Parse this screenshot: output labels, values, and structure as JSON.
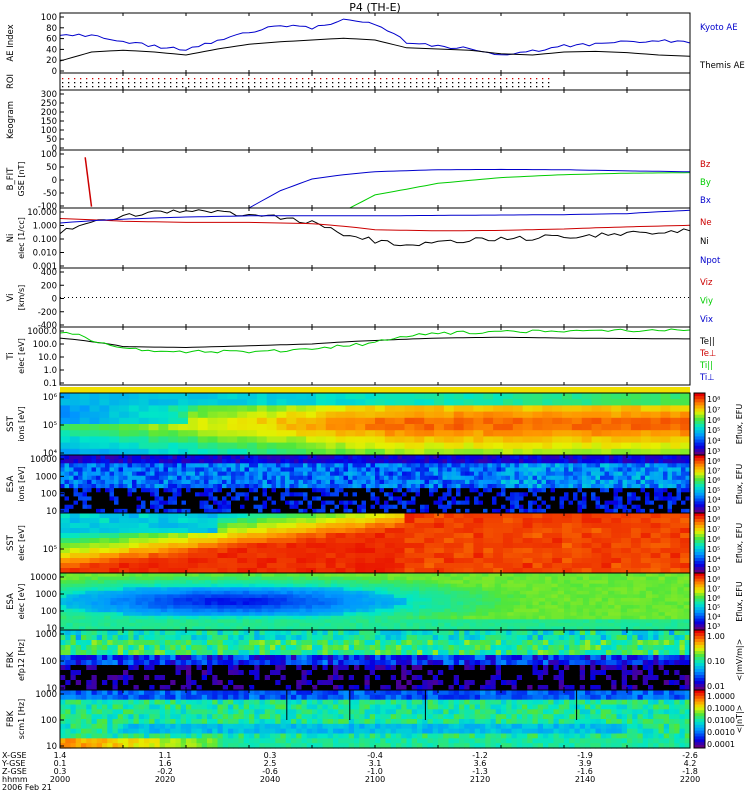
{
  "title": "P4 (TH-E)",
  "colors": {
    "kyoto": "#0000cc",
    "themis": "#000000",
    "bz": "#cc0000",
    "by": "#00cc00",
    "bx": "#0000cc",
    "ne": "#cc0000",
    "ni": "#000000",
    "npot": "#0000cc",
    "telll": "#000000",
    "tep": "#cc0000",
    "til": "#00cc00",
    "tip": "#0000cc"
  },
  "panels": [
    {
      "id": "ae",
      "ylabel": "AE Index",
      "units": "",
      "ticks": [
        "100",
        "80",
        "60",
        "40",
        "20",
        "0"
      ],
      "legend": [
        {
          "text": "Kyoto AE",
          "color": "#0000cc"
        },
        {
          "text": "Themis AE",
          "color": "#000000"
        }
      ]
    },
    {
      "id": "roi",
      "ylabel": "ROI",
      "units": "",
      "ticks": [],
      "legend": []
    },
    {
      "id": "keogram",
      "ylabel": "Keogram",
      "units": "",
      "ticks": [
        "300",
        "250",
        "200",
        "150",
        "100",
        "50",
        "0"
      ],
      "legend": []
    },
    {
      "id": "bfit",
      "ylabel": "B_FIT",
      "units": "GSE [nT]",
      "ticks": [
        "100",
        "50",
        "0",
        "-50",
        "-100"
      ],
      "legend": [
        {
          "text": "Bz",
          "color": "#cc0000"
        },
        {
          "text": "By",
          "color": "#00cc00"
        },
        {
          "text": "Bx",
          "color": "#0000cc"
        }
      ]
    },
    {
      "id": "ni",
      "ylabel": "Ni",
      "units": "elec [1/cc]",
      "ticks": [
        "10.000",
        "1.000",
        "0.100",
        "0.010",
        "0.001"
      ],
      "legend": [
        {
          "text": "Ne",
          "color": "#cc0000"
        },
        {
          "text": "Ni",
          "color": "#000000"
        },
        {
          "text": "Npot",
          "color": "#0000cc"
        }
      ]
    },
    {
      "id": "vi",
      "ylabel": "Vi",
      "units": "[km/s]",
      "ticks": [
        "400",
        "200",
        "0",
        "-200",
        "-400"
      ],
      "legend": [
        {
          "text": "Viz",
          "color": "#cc0000"
        },
        {
          "text": "Viy",
          "color": "#00cc00"
        },
        {
          "text": "Vix",
          "color": "#0000cc"
        }
      ]
    },
    {
      "id": "ti",
      "ylabel": "Ti",
      "units": "elec [eV]",
      "ticks": [
        "1000.0",
        "100.0",
        "10.0",
        "1.0",
        "0.1"
      ],
      "legend": [
        {
          "text": "Te||",
          "color": "#000000"
        },
        {
          "text": "Te⊥",
          "color": "#cc0000"
        },
        {
          "text": "Ti||",
          "color": "#00cc00"
        },
        {
          "text": "Ti⊥",
          "color": "#0000cc"
        }
      ]
    },
    {
      "id": "sst_i",
      "ylabel": "SST",
      "units": "ions [eV]",
      "ticks": [
        "10⁶",
        "10⁵",
        "10⁴"
      ],
      "cbticks": [
        "10⁸",
        "10⁷",
        "10⁶",
        "10⁵",
        "10⁴",
        "10³"
      ],
      "cblabel": "Eflux, EFU"
    },
    {
      "id": "esa_i",
      "ylabel": "ESA",
      "units": "ions [eV]",
      "ticks": [
        "10000",
        "1000",
        "100",
        "10"
      ],
      "cbticks": [
        "10⁸",
        "10⁷",
        "10⁶",
        "10⁵",
        "10⁴",
        "10³"
      ],
      "cblabel": "Eflux, EFU"
    },
    {
      "id": "sst_e",
      "ylabel": "SST",
      "units": "elec [eV]",
      "ticks": [
        "10⁵"
      ],
      "cbticks": [
        "10⁸",
        "10⁷",
        "10⁶",
        "10⁵",
        "10⁴",
        "10³"
      ],
      "cblabel": "Eflux, EFU"
    },
    {
      "id": "esa_e",
      "ylabel": "ESA",
      "units": "elec [eV]",
      "ticks": [
        "10000",
        "1000",
        "100",
        "10"
      ],
      "cbticks": [
        "10⁸",
        "10⁷",
        "10⁶",
        "10⁵",
        "10⁴",
        "10³"
      ],
      "cblabel": "Eflux, EFU"
    },
    {
      "id": "fbk_e",
      "ylabel": "FBK",
      "units": "efp12 [Hz]",
      "ticks": [
        "1000",
        "100",
        "10"
      ],
      "cbticks": [
        "1.00",
        "0.10",
        "0.01"
      ],
      "cblabel": "<|mV/m|>"
    },
    {
      "id": "fbk_b",
      "ylabel": "FBK",
      "units": "scm1 [Hz]",
      "ticks": [
        "1000",
        "100",
        "10"
      ],
      "cbticks": [
        "1.0000",
        "0.1000",
        "0.0100",
        "0.0010",
        "0.0001"
      ],
      "cblabel": "<|nT|>"
    }
  ],
  "xaxis": {
    "row_labels": [
      "X-GSE",
      "Y-GSE",
      "Z-GSE",
      "hhmm",
      "2006 Feb 21"
    ],
    "columns": [
      [
        "1.4",
        "0.1",
        "0.3",
        "2000"
      ],
      [
        "1.1",
        "1.6",
        "-0.2",
        "2020"
      ],
      [
        "0.3",
        "2.5",
        "-0.6",
        "2040"
      ],
      [
        "-0.4",
        "3.1",
        "-1.0",
        "2100"
      ],
      [
        "-1.2",
        "3.6",
        "-1.3",
        "2120"
      ],
      [
        "-1.9",
        "3.9",
        "-1.6",
        "2140"
      ],
      [
        "-2.6",
        "4.2",
        "-1.8",
        "2200"
      ]
    ]
  },
  "chart_data": [
    {
      "type": "line",
      "title": "AE Index",
      "x_range": [
        2000,
        2200
      ],
      "ylim": [
        0,
        100
      ],
      "series": [
        {
          "name": "Kyoto AE",
          "x": [
            2000,
            2010,
            2020,
            2030,
            2040,
            2050,
            2060,
            2070,
            2080,
            2090,
            2100,
            2110,
            2120,
            2130,
            2140,
            2150,
            2160,
            2170,
            2180,
            2190,
            2200
          ],
          "y": [
            65,
            62,
            52,
            45,
            38,
            55,
            68,
            80,
            75,
            88,
            82,
            52,
            45,
            40,
            30,
            36,
            45,
            48,
            52,
            55,
            50
          ]
        },
        {
          "name": "Themis AE",
          "x": [
            2000,
            2010,
            2020,
            2030,
            2040,
            2050,
            2060,
            2070,
            2080,
            2090,
            2100,
            2110,
            2120,
            2130,
            2140,
            2150,
            2160,
            2170,
            2180,
            2190,
            2200
          ],
          "y": [
            20,
            35,
            38,
            35,
            30,
            40,
            48,
            52,
            55,
            58,
            55,
            42,
            40,
            38,
            32,
            30,
            35,
            36,
            34,
            30,
            28
          ]
        }
      ]
    },
    {
      "type": "line",
      "title": "B_FIT",
      "x_range": [
        2000,
        2200
      ],
      "ylim": [
        -100,
        100
      ],
      "series": [
        {
          "name": "Bz",
          "x": [
            2008,
            2010
          ],
          "y": [
            75,
            -95
          ]
        },
        {
          "name": "By",
          "x": [
            2092,
            2100,
            2120,
            2140,
            2160,
            2180,
            2200
          ],
          "y": [
            -100,
            -55,
            -15,
            5,
            15,
            20,
            22
          ]
        },
        {
          "name": "Bx",
          "x": [
            2060,
            2070,
            2080,
            2090,
            2100,
            2120,
            2140,
            2160,
            2180,
            2200
          ],
          "y": [
            -100,
            -40,
            0,
            15,
            25,
            32,
            33,
            32,
            28,
            25
          ]
        }
      ]
    },
    {
      "type": "line",
      "title": "Ni",
      "x_range": [
        2000,
        2200
      ],
      "ylim_log10": [
        -3,
        1
      ],
      "series": [
        {
          "name": "Ni",
          "x": [
            2000,
            2010,
            2020,
            2030,
            2040,
            2050,
            2060,
            2070,
            2080,
            2090,
            2100,
            2110,
            2120,
            2130,
            2140,
            2150,
            2160,
            2170,
            2180,
            2190,
            2200
          ],
          "y": [
            0.15,
            1.0,
            2.5,
            4.5,
            6.0,
            5.0,
            3.5,
            2.5,
            1.0,
            0.15,
            0.06,
            0.04,
            0.05,
            0.07,
            0.09,
            0.1,
            0.13,
            0.16,
            0.2,
            0.25,
            0.3
          ]
        },
        {
          "name": "Ne",
          "x": [
            2000,
            2020,
            2040,
            2060,
            2080,
            2090,
            2100,
            2120,
            2140,
            2160,
            2180,
            2200
          ],
          "y": [
            2.0,
            1.3,
            1.1,
            1.1,
            0.9,
            0.6,
            0.35,
            0.3,
            0.32,
            0.4,
            0.55,
            0.7
          ]
        },
        {
          "name": "Npot",
          "x": [
            2000,
            2020,
            2040,
            2060,
            2080,
            2100,
            2120,
            2140,
            2160,
            2180,
            2200
          ],
          "y": [
            1.0,
            1.8,
            2.5,
            3.0,
            3.0,
            3.0,
            3.2,
            3.4,
            3.6,
            4.2,
            7.0
          ]
        }
      ]
    },
    {
      "type": "line",
      "title": "Ti",
      "x_range": [
        2000,
        2200
      ],
      "ylim_log10": [
        -1,
        3.3
      ],
      "series": [
        {
          "name": "Te||",
          "x": [
            2000,
            2010,
            2020,
            2040,
            2060,
            2080,
            2100,
            2120,
            2140,
            2160,
            2180,
            2200
          ],
          "y": [
            300,
            160,
            70,
            60,
            80,
            110,
            200,
            300,
            350,
            300,
            280,
            260
          ]
        },
        {
          "name": "Ti||",
          "x": [
            2000,
            2010,
            2020,
            2040,
            2060,
            2080,
            2100,
            2120,
            2140,
            2160,
            2180,
            2200
          ],
          "y": [
            900,
            200,
            45,
            30,
            30,
            40,
            120,
            700,
            900,
            1000,
            1100,
            1200
          ]
        }
      ]
    }
  ]
}
